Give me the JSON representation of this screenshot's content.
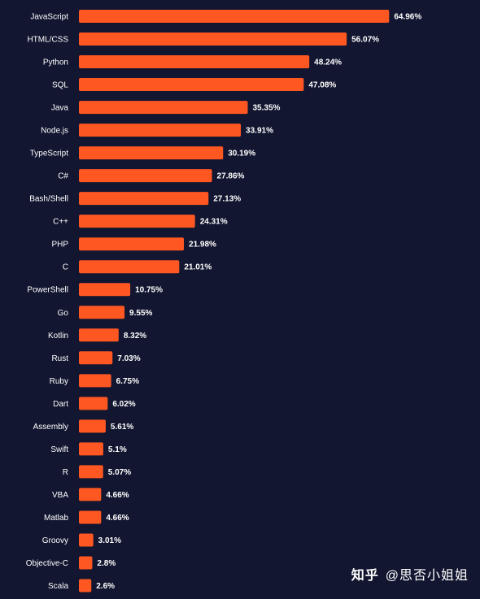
{
  "chart_data": {
    "type": "bar",
    "orientation": "horizontal",
    "categories": [
      "JavaScript",
      "HTML/CSS",
      "Python",
      "SQL",
      "Java",
      "Node.js",
      "TypeScript",
      "C#",
      "Bash/Shell",
      "C++",
      "PHP",
      "C",
      "PowerShell",
      "Go",
      "Kotlin",
      "Rust",
      "Ruby",
      "Dart",
      "Assembly",
      "Swift",
      "R",
      "VBA",
      "Matlab",
      "Groovy",
      "Objective-C",
      "Scala"
    ],
    "values": [
      64.96,
      56.07,
      48.24,
      47.08,
      35.35,
      33.91,
      30.19,
      27.86,
      27.13,
      24.31,
      21.98,
      21.01,
      10.75,
      9.55,
      8.32,
      7.03,
      6.75,
      6.02,
      5.61,
      5.1,
      5.07,
      4.66,
      4.66,
      3.01,
      2.8,
      2.6
    ],
    "value_labels": [
      "64.96%",
      "56.07%",
      "48.24%",
      "47.08%",
      "35.35%",
      "33.91%",
      "30.19%",
      "27.86%",
      "27.13%",
      "24.31%",
      "21.98%",
      "21.01%",
      "10.75%",
      "9.55%",
      "8.32%",
      "7.03%",
      "6.75%",
      "6.02%",
      "5.61%",
      "5.1%",
      "5.07%",
      "4.66%",
      "4.66%",
      "3.01%",
      "2.8%",
      "2.6%"
    ],
    "title": "",
    "xlabel": "",
    "ylabel": "",
    "xlim": [
      0,
      80
    ],
    "grid": false,
    "bar_color": "#ff5722",
    "background_color": "#121630",
    "text_color": "#ffffff"
  },
  "watermark": {
    "brand": "知乎",
    "author": "@思否小姐姐"
  }
}
